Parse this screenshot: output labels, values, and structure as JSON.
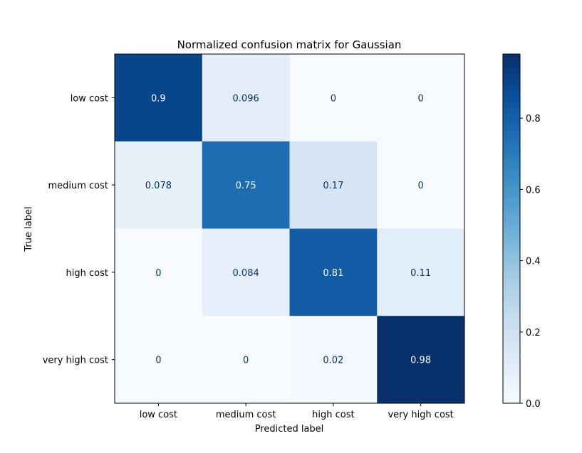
{
  "chart_data": {
    "type": "heatmap",
    "title": "Normalized confusion matrix for Gaussian",
    "xlabel": "Predicted label",
    "ylabel": "True label",
    "x_categories": [
      "low cost",
      "medium cost",
      "high cost",
      "very high cost"
    ],
    "y_categories": [
      "low cost",
      "medium cost",
      "high cost",
      "very high cost"
    ],
    "values": [
      [
        0.9,
        0.096,
        0,
        0
      ],
      [
        0.078,
        0.75,
        0.17,
        0
      ],
      [
        0,
        0.084,
        0.81,
        0.11
      ],
      [
        0,
        0,
        0.02,
        0.98
      ]
    ],
    "cell_labels": [
      [
        "0.9",
        "0.096",
        "0",
        "0"
      ],
      [
        "0.078",
        "0.75",
        "0.17",
        "0"
      ],
      [
        "0",
        "0.084",
        "0.81",
        "0.11"
      ],
      [
        "0",
        "0",
        "0.02",
        "0.98"
      ]
    ],
    "colormap": "Blues",
    "colorbar": {
      "min": 0.0,
      "max": 0.98,
      "ticks": [
        0.0,
        0.2,
        0.4,
        0.6,
        0.8
      ],
      "tick_labels": [
        "0.0",
        "0.2",
        "0.4",
        "0.6",
        "0.8"
      ]
    },
    "grid": false
  }
}
